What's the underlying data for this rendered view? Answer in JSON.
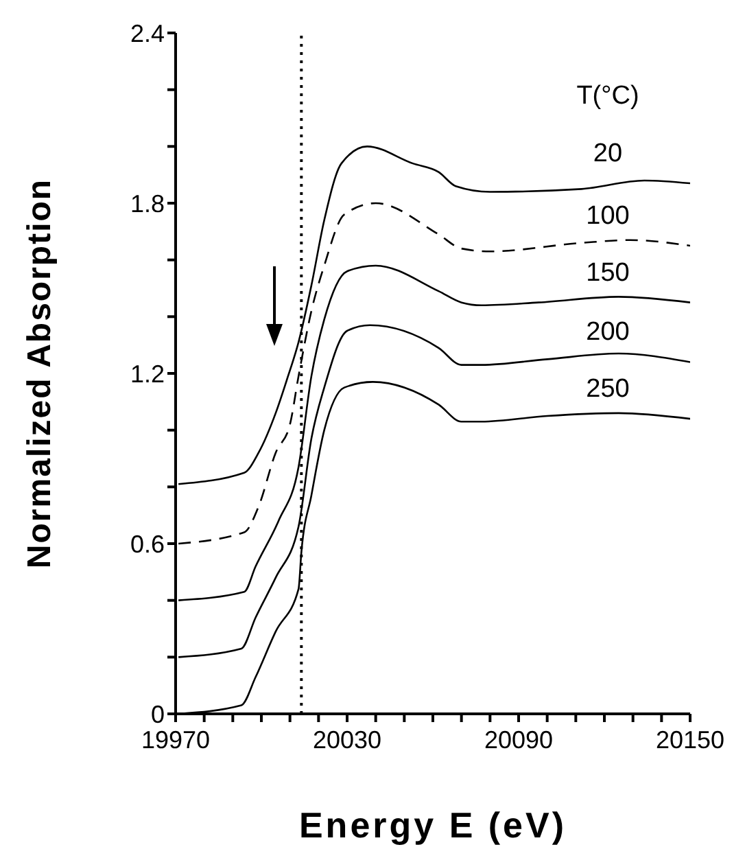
{
  "chart_data": {
    "type": "line",
    "xlabel": "Energy E (eV)",
    "ylabel": "Normalized Absorption",
    "legend_title": "T(°C)",
    "series": [
      {
        "name": "20",
        "color": "#000000",
        "line_style": "solid",
        "x": [
          19971,
          19994,
          19999,
          20005,
          20009,
          20013,
          20017.5,
          20022,
          20028,
          20037,
          20053,
          20062,
          20068,
          20080,
          20112,
          20134,
          20150
        ],
        "values": [
          0.81,
          0.85,
          0.92,
          1.06,
          1.18,
          1.31,
          1.51,
          1.74,
          1.94,
          2.0,
          1.94,
          1.91,
          1.86,
          1.84,
          1.85,
          1.88,
          1.87
        ]
      },
      {
        "name": "100",
        "color": "#000000",
        "line_style": "dashed",
        "x": [
          19971,
          19994,
          19999,
          20005,
          20010,
          20013,
          20017.5,
          20022,
          20029,
          20040,
          20062,
          20070,
          20080,
          20112,
          20129,
          20150
        ],
        "values": [
          0.6,
          0.64,
          0.73,
          0.92,
          1.02,
          1.19,
          1.42,
          1.58,
          1.76,
          1.8,
          1.69,
          1.64,
          1.63,
          1.66,
          1.67,
          1.65
        ]
      },
      {
        "name": "150",
        "color": "#000000",
        "line_style": "solid",
        "x": [
          19971,
          19994,
          19998,
          20006,
          20013,
          20017.5,
          20022,
          20030,
          20040,
          20062,
          20070,
          20077,
          20097,
          20125,
          20150
        ],
        "values": [
          0.4,
          0.43,
          0.52,
          0.68,
          0.87,
          1.19,
          1.39,
          1.56,
          1.58,
          1.49,
          1.45,
          1.44,
          1.45,
          1.47,
          1.45
        ]
      },
      {
        "name": "200",
        "color": "#000000",
        "line_style": "solid",
        "x": [
          19971,
          19993,
          19998,
          20005,
          20013,
          20017.5,
          20022,
          20030,
          20038,
          20062,
          20070,
          20077,
          20100,
          20125,
          20150
        ],
        "values": [
          0.2,
          0.23,
          0.34,
          0.48,
          0.66,
          0.97,
          1.15,
          1.35,
          1.37,
          1.29,
          1.23,
          1.23,
          1.25,
          1.27,
          1.24
        ]
      },
      {
        "name": "250",
        "color": "#000000",
        "line_style": "solid",
        "x": [
          19971,
          19993,
          19998,
          20005,
          20013,
          20014,
          20017.5,
          20022,
          20029,
          20039,
          20062,
          20070,
          20077,
          20100,
          20125,
          20150
        ],
        "values": [
          0.0,
          0.03,
          0.13,
          0.29,
          0.44,
          0.57,
          0.77,
          1.0,
          1.15,
          1.17,
          1.09,
          1.03,
          1.03,
          1.05,
          1.06,
          1.04
        ]
      }
    ],
    "xlim": [
      19970,
      20150
    ],
    "xticks": [
      19970,
      {
        "value": 19980,
        "label": null
      },
      {
        "value": 19990,
        "label": null
      },
      {
        "value": 20000,
        "label": null
      },
      {
        "value": 20010,
        "label": null
      },
      {
        "value": 20020,
        "label": null
      },
      20030,
      {
        "value": 20040,
        "label": null
      },
      {
        "value": 20050,
        "label": null
      },
      {
        "value": 20060,
        "label": null
      },
      {
        "value": 20070,
        "label": null
      },
      {
        "value": 20080,
        "label": null
      },
      20090,
      {
        "value": 20100,
        "label": null
      },
      {
        "value": 20110,
        "label": null
      },
      {
        "value": 20120,
        "label": null
      },
      {
        "value": 20130,
        "label": null
      },
      {
        "value": 20140,
        "label": null
      },
      20150
    ],
    "ylim": [
      0,
      2.4
    ],
    "yticks": [
      0,
      {
        "value": 0.2,
        "label": null
      },
      {
        "value": 0.4,
        "label": null
      },
      0.6,
      {
        "value": 0.8,
        "label": null
      },
      {
        "value": 1.0,
        "label": null
      },
      1.2,
      {
        "value": 1.4,
        "label": null
      },
      {
        "value": 1.6,
        "label": null
      },
      1.8,
      {
        "value": 2.0,
        "label": null
      },
      {
        "value": 2.2,
        "label": null
      },
      2.4
    ],
    "ref_lines": [
      {
        "axis": "x",
        "value": 20014,
        "color": "#000000",
        "line_style": "dotted"
      }
    ],
    "grid": false,
    "legend": false,
    "marker": "none"
  }
}
